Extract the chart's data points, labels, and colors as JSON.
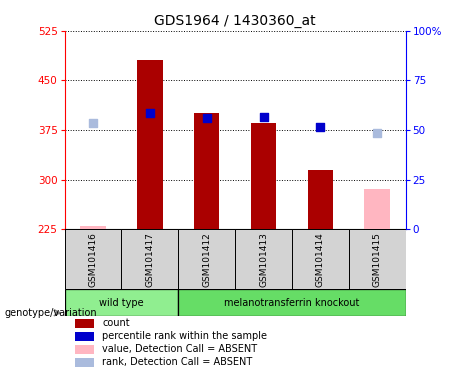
{
  "title": "GDS1964 / 1430360_at",
  "samples": [
    "GSM101416",
    "GSM101417",
    "GSM101412",
    "GSM101413",
    "GSM101414",
    "GSM101415"
  ],
  "genotype_groups": [
    {
      "label": "wild type",
      "samples_idx": [
        0,
        1
      ],
      "color": "#90ee90"
    },
    {
      "label": "melanotransferrin knockout",
      "samples_idx": [
        2,
        3,
        4,
        5
      ],
      "color": "#66dd66"
    }
  ],
  "count_values": [
    null,
    480,
    400,
    385,
    315,
    null
  ],
  "count_absent_values": [
    230,
    null,
    null,
    null,
    null,
    285
  ],
  "percentile_values": [
    null,
    400,
    393,
    395,
    380,
    null
  ],
  "percentile_absent_values": [
    385,
    null,
    null,
    null,
    null,
    370
  ],
  "ylim_left": [
    225,
    525
  ],
  "yticks_left": [
    225,
    300,
    375,
    450,
    525
  ],
  "ylim_right": [
    0,
    100
  ],
  "yticks_right": [
    0,
    25,
    50,
    75,
    100
  ],
  "bar_color_present": "#aa0000",
  "bar_color_absent": "#ffb6c1",
  "dot_color_present": "#0000cc",
  "dot_color_absent": "#aabbdd",
  "bar_width": 0.45,
  "dot_size": 40,
  "legend_items": [
    {
      "label": "count",
      "color": "#aa0000"
    },
    {
      "label": "percentile rank within the sample",
      "color": "#0000cc"
    },
    {
      "label": "value, Detection Call = ABSENT",
      "color": "#ffb6c1"
    },
    {
      "label": "rank, Detection Call = ABSENT",
      "color": "#aabbdd"
    }
  ]
}
